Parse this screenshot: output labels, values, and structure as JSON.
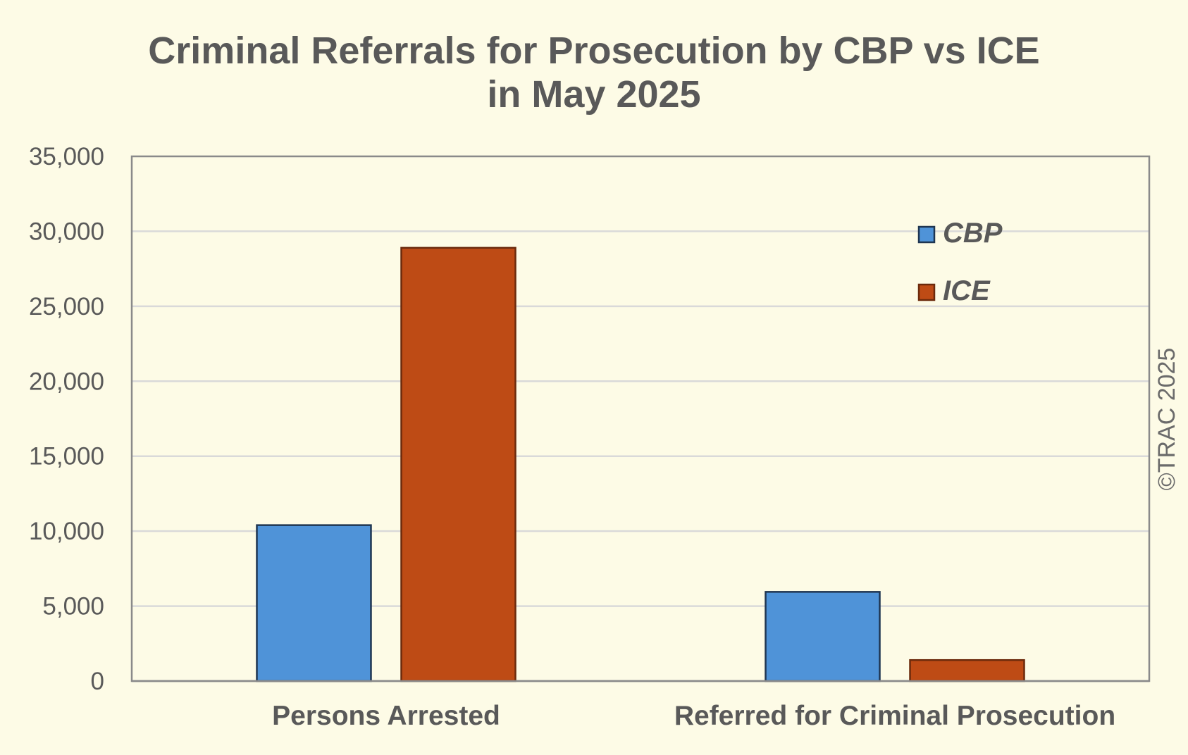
{
  "chart_data": {
    "type": "bar",
    "title": "Criminal Referrals for Prosecution by CBP vs ICE in May 2025",
    "title_lines": [
      "Criminal Referrals for Prosecution by CBP vs ICE",
      "in May 2025"
    ],
    "categories": [
      "Persons Arrested",
      "Referred for Criminal Prosecution"
    ],
    "series": [
      {
        "name": "CBP",
        "color": "#4f93d8",
        "border": "#1f3550",
        "values": [
          10400,
          5950
        ]
      },
      {
        "name": "ICE",
        "color": "#be4b15",
        "border": "#6b2a0c",
        "values": [
          28900,
          1400
        ]
      }
    ],
    "ylim": [
      0,
      35000
    ],
    "yticks": [
      0,
      5000,
      10000,
      15000,
      20000,
      25000,
      30000,
      35000
    ],
    "ytick_labels": [
      "0",
      "5,000",
      "10,000",
      "15,000",
      "20,000",
      "25,000",
      "30,000",
      "35,000"
    ],
    "xlabel": "",
    "ylabel": "",
    "grid": true,
    "legend_position": "top-right",
    "copyright": "©TRAC 2025"
  }
}
